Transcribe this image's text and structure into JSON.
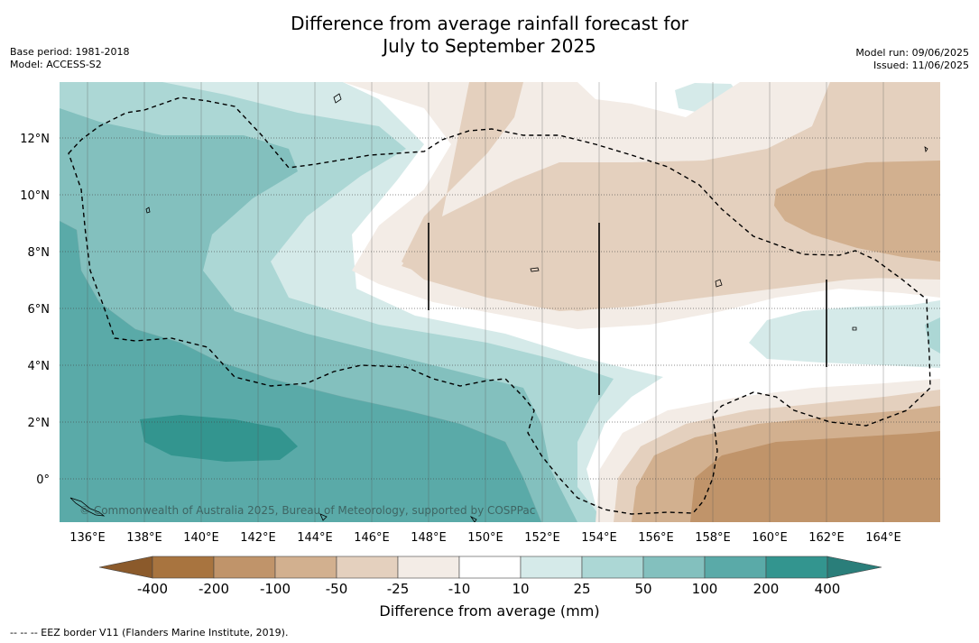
{
  "title_line1": "Difference from average rainfall forecast for",
  "title_line2": "July to September 2025",
  "base_period": "Base period: 1981-2018",
  "model": "Model: ACCESS-S2",
  "model_run": "Model run: 09/06/2025",
  "issued": "Issued: 11/06/2025",
  "copyright": "© Commonwealth of Australia 2025, Bureau of Meteorology, supported by COSPPac",
  "colorbar_title": "Difference from average (mm)",
  "footnote": "--  --  -- EEZ border V11 (Flanders Marine Institute, 2019).",
  "colors": {
    "neg400": "#8b5a2b",
    "neg200": "#a8743f",
    "neg100": "#c0946a",
    "neg50": "#d2b08f",
    "neg25": "#e4d0be",
    "neg10": "#f3ece6",
    "zero": "#ffffff",
    "pos10": "#d5eae9",
    "pos25": "#acd7d5",
    "pos50": "#83c0be",
    "pos100": "#5aaaa8",
    "pos200": "#33958f",
    "pos400": "#2a7e7a"
  },
  "colorbar_labels": [
    "-400",
    "-200",
    "-100",
    "-50",
    "-25",
    "-10",
    "10",
    "25",
    "50",
    "100",
    "200",
    "400"
  ],
  "lon_labels": [
    "136°E",
    "138°E",
    "140°E",
    "142°E",
    "144°E",
    "146°E",
    "148°E",
    "150°E",
    "152°E",
    "154°E",
    "156°E",
    "158°E",
    "160°E",
    "162°E",
    "164°E"
  ],
  "lat_labels": [
    "12°N",
    "10°N",
    "8°N",
    "6°N",
    "4°N",
    "2°N",
    "0°"
  ]
}
